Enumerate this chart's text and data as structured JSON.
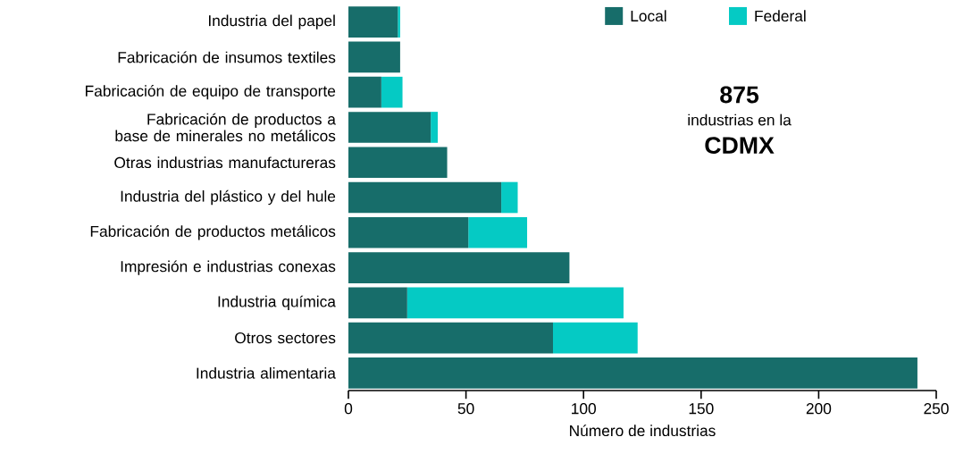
{
  "chart_data": {
    "type": "bar",
    "orientation": "horizontal",
    "stacked": true,
    "xlabel": "Número de industrias",
    "categories": [
      "Industria del papel",
      "Fabricación de insumos textiles",
      "Fabricación de equipo de transporte",
      "Fabricación de productos a base de minerales no metálicos",
      "Otras industrias manufactureras",
      "Industria del plástico y del hule",
      "Fabricación de productos metálicos",
      "Impresión e industrias conexas",
      "Industria química",
      "Otros sectores",
      "Industria alimentaria"
    ],
    "series": [
      {
        "name": "Local",
        "color": "#176d6a",
        "values": [
          21,
          22,
          14,
          35,
          42,
          65,
          51,
          94,
          25,
          87,
          242
        ]
      },
      {
        "name": "Federal",
        "color": "#05cac4",
        "values": [
          1,
          0,
          9,
          3,
          0,
          7,
          25,
          0,
          92,
          36,
          0
        ]
      }
    ],
    "xlim": [
      0,
      250
    ],
    "xticks": [
      0,
      50,
      100,
      150,
      200,
      250
    ],
    "grid": false,
    "legend": "top right",
    "annotations": [
      "875",
      "industrias en la",
      "CDMX"
    ]
  }
}
